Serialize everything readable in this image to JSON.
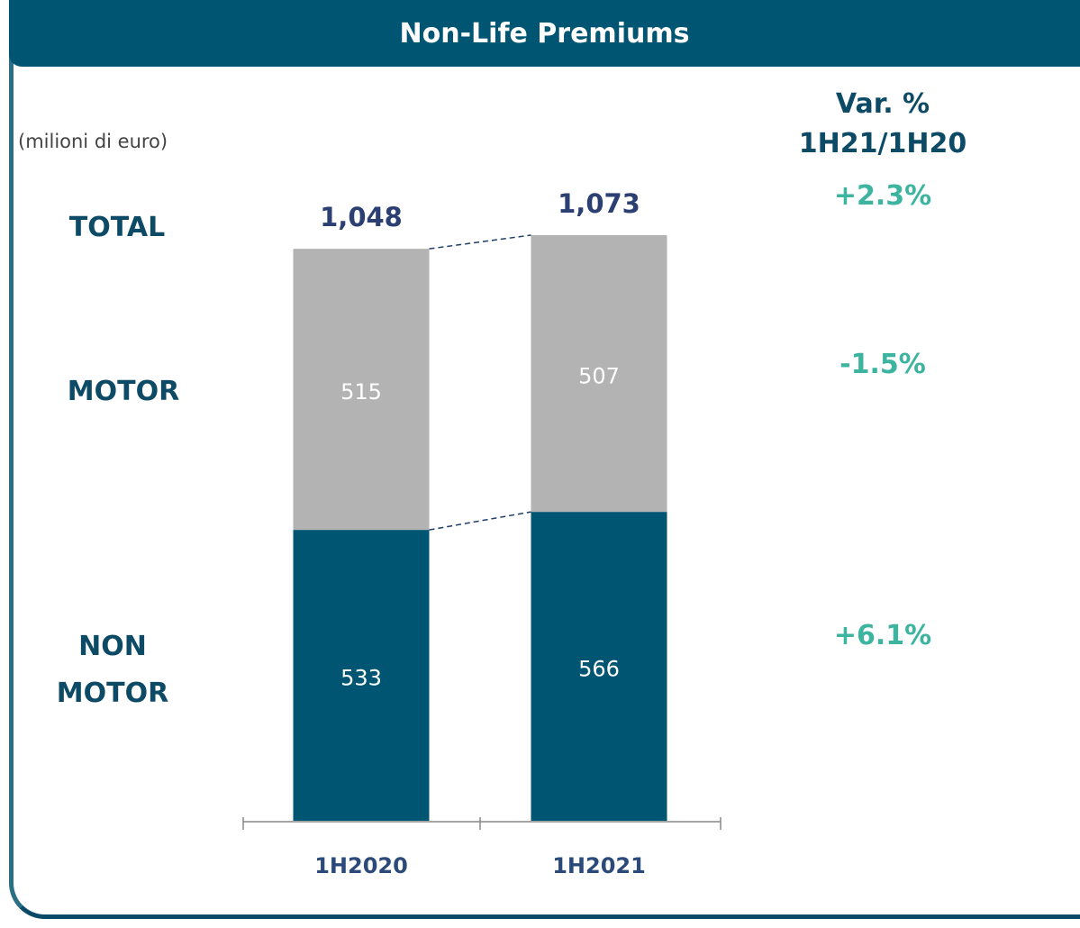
{
  "chart_data": {
    "type": "stacked-bar",
    "title": "Non-Life Premiums",
    "subtitle": "(milioni di euro)",
    "categories": [
      "1H2020",
      "1H2021"
    ],
    "series": [
      {
        "name": "NON MOTOR",
        "color": "#005573",
        "values": [
          533,
          566
        ]
      },
      {
        "name": "MOTOR",
        "color": "#b3b3b3",
        "values": [
          515,
          507
        ]
      }
    ],
    "totals": {
      "name": "TOTAL",
      "values": [
        1048,
        1073
      ],
      "value_labels": [
        "1,048",
        "1,073"
      ]
    },
    "variation": {
      "header": [
        "Var. %",
        "1H21/1H20"
      ],
      "color": "#3cb4a0",
      "values": [
        2.3,
        -1.5,
        6.1
      ],
      "value_labels": [
        "+2.3%",
        "-1.5%",
        "+6.1%"
      ]
    }
  }
}
